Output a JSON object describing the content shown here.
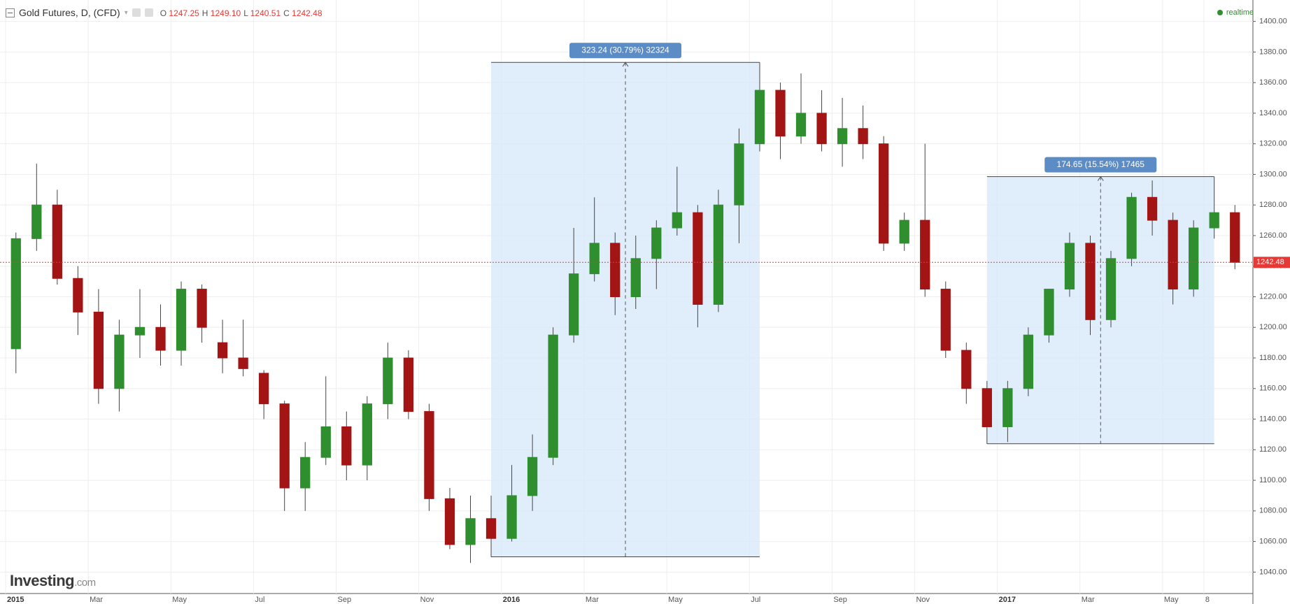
{
  "chart_data": {
    "type": "candlestick",
    "title": "Gold Futures, D, (CFD)",
    "quote": [
      {
        "name": "O",
        "value": 1247.25
      },
      {
        "name": "H",
        "value": 1249.1,
        "label": "1249.10"
      },
      {
        "name": "L",
        "value": 1240.51
      },
      {
        "name": "C",
        "value": 1242.48
      }
    ],
    "status": "realtime",
    "watermark": [
      "Investing",
      ".com"
    ],
    "categories": [
      "2015",
      null,
      null,
      null,
      "Mar",
      null,
      null,
      null,
      "May",
      null,
      null,
      null,
      "Jul",
      null,
      null,
      null,
      "Sep",
      null,
      null,
      null,
      "Nov",
      null,
      null,
      null,
      "2016",
      null,
      null,
      null,
      "Mar",
      null,
      null,
      null,
      "May",
      null,
      null,
      null,
      "Jul",
      null,
      null,
      null,
      "Sep",
      null,
      null,
      null,
      "Nov",
      null,
      null,
      null,
      "2017",
      null,
      null,
      null,
      "Mar",
      null,
      null,
      null,
      "May",
      null,
      "8",
      null
    ],
    "open": [
      1186,
      1258,
      1280,
      1232,
      1210,
      1160,
      1195,
      1200,
      1185,
      1225,
      1190,
      1180,
      1170,
      1150,
      1095,
      1115,
      1135,
      1110,
      1150,
      1180,
      1145,
      1088,
      1058,
      1075,
      1062,
      1090,
      1115,
      1195,
      1235,
      1255,
      1220,
      1245,
      1265,
      1275,
      1215,
      1280,
      1320,
      1355,
      1325,
      1340,
      1320,
      1330,
      1320,
      1255,
      1270,
      1225,
      1185,
      1160,
      1135,
      1160,
      1195,
      1225,
      1255,
      1205,
      1245,
      1285,
      1270,
      1225,
      1265,
      1275
    ],
    "high": [
      1262,
      1307,
      1290,
      1240,
      1225,
      1205,
      1225,
      1215,
      1230,
      1228,
      1205,
      1205,
      1172,
      1152,
      1125,
      1168,
      1145,
      1155,
      1190,
      1185,
      1150,
      1095,
      1090,
      1090,
      1110,
      1130,
      1200,
      1265,
      1285,
      1262,
      1260,
      1270,
      1305,
      1280,
      1290,
      1330,
      1373.24,
      1360,
      1366,
      1355,
      1350,
      1345,
      1325,
      1275,
      1320,
      1230,
      1190,
      1165,
      1165,
      1200,
      1225,
      1262,
      1260,
      1250,
      1288,
      1296,
      1275,
      1270,
      1298.55,
      1280
    ],
    "low": [
      1170,
      1250,
      1228,
      1195,
      1150,
      1145,
      1180,
      1175,
      1175,
      1190,
      1170,
      1168,
      1140,
      1080,
      1080,
      1110,
      1100,
      1100,
      1140,
      1140,
      1080,
      1055,
      1046,
      1050,
      1060,
      1080,
      1110,
      1190,
      1230,
      1208,
      1212,
      1225,
      1260,
      1200,
      1210,
      1255,
      1315,
      1310,
      1320,
      1315,
      1305,
      1310,
      1250,
      1250,
      1220,
      1180,
      1150,
      1123.9,
      1125,
      1155,
      1190,
      1220,
      1195,
      1200,
      1240,
      1260,
      1215,
      1220,
      1258,
      1238
    ],
    "close": [
      1258,
      1280,
      1232,
      1210,
      1160,
      1195,
      1200,
      1185,
      1225,
      1200,
      1180,
      1173,
      1150,
      1095,
      1115,
      1135,
      1110,
      1150,
      1180,
      1145,
      1088,
      1058,
      1075,
      1062,
      1090,
      1115,
      1195,
      1235,
      1255,
      1220,
      1245,
      1265,
      1275,
      1215,
      1280,
      1320,
      1355,
      1325,
      1340,
      1320,
      1330,
      1320,
      1255,
      1270,
      1225,
      1185,
      1160,
      1135,
      1160,
      1195,
      1225,
      1255,
      1205,
      1245,
      1285,
      1270,
      1225,
      1265,
      1275,
      1242.48
    ],
    "up_color": "#2f8f2f",
    "down_color": "#a31515",
    "annotations": [
      {
        "label": "323.24 (30.79%) 32324",
        "low": 1050,
        "high": 1373.24
      },
      {
        "label": "174.65 (15.54%) 17465",
        "low": 1123.9,
        "high": 1298.55
      }
    ],
    "ylim": [
      1026,
      1414
    ],
    "yticks": [
      {
        "value": 1040,
        "label": "1040.00"
      },
      {
        "value": 1060,
        "label": "1060.00"
      },
      {
        "value": 1080,
        "label": "1080.00"
      },
      {
        "value": 1100,
        "label": "1100.00"
      },
      {
        "value": 1120,
        "label": "1120.00"
      },
      {
        "value": 1140,
        "label": "1140.00"
      },
      {
        "value": 1160,
        "label": "1160.00"
      },
      {
        "value": 1180,
        "label": "1180.00"
      },
      {
        "value": 1200,
        "label": "1200.00"
      },
      {
        "value": 1220,
        "label": "1220.00"
      },
      {
        "value": 1240,
        "label": "1240.00"
      },
      {
        "value": 1260,
        "label": "1260.00"
      },
      {
        "value": 1280,
        "label": "1280.00"
      },
      {
        "value": 1300,
        "label": "1300.00"
      },
      {
        "value": 1320,
        "label": "1320.00"
      },
      {
        "value": 1340,
        "label": "1340.00"
      },
      {
        "value": 1360,
        "label": "1360.00"
      },
      {
        "value": 1380,
        "label": "1380.00"
      },
      {
        "value": 1400,
        "label": "1400.00"
      }
    ],
    "grid": true
  }
}
